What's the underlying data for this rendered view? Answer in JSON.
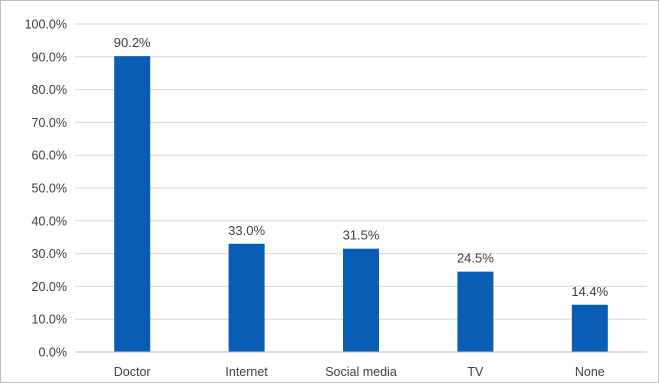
{
  "chart_data": {
    "type": "bar",
    "categories": [
      "Doctor",
      "Internet",
      "Social media",
      "TV",
      "None"
    ],
    "values": [
      90.2,
      33.0,
      31.5,
      24.5,
      14.4
    ],
    "data_labels": [
      "90.2%",
      "33.0%",
      "31.5%",
      "24.5%",
      "14.4%"
    ],
    "title": "",
    "xlabel": "",
    "ylabel": "",
    "ylim": [
      0,
      100
    ],
    "y_ticks": [
      0,
      10,
      20,
      30,
      40,
      50,
      60,
      70,
      80,
      90,
      100
    ],
    "y_tick_labels": [
      "0.0%",
      "10.0%",
      "20.0%",
      "30.0%",
      "40.0%",
      "50.0%",
      "60.0%",
      "70.0%",
      "80.0%",
      "90.0%",
      "100.0%"
    ],
    "grid": true,
    "legend": "none",
    "bar_color": "#0a5db5",
    "grid_color": "#d9d9d9",
    "axis_color": "#bfbfbf",
    "text_color": "#404040"
  }
}
